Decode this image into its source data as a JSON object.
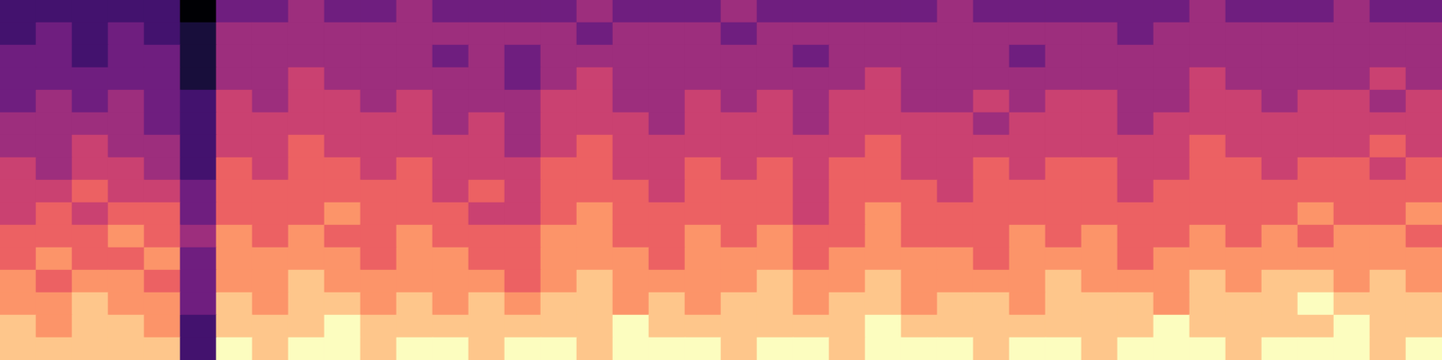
{
  "chart_data": {
    "type": "heatmap",
    "tick_labels": false,
    "zlim": [
      0,
      9
    ],
    "cells": [
      [
        8,
        8,
        8,
        8,
        8,
        2,
        9,
        8,
        9,
        9,
        8,
        9,
        9,
        8,
        9,
        9,
        8,
        9,
        9,
        9,
        8,
        9,
        9,
        8,
        9,
        9,
        9,
        8,
        9,
        9,
        8,
        9,
        9,
        9,
        8,
        9,
        9,
        9,
        8,
        9
      ],
      [
        8,
        7,
        8,
        8,
        7,
        2,
        8,
        8,
        8,
        9,
        8,
        8,
        8,
        8,
        8,
        8,
        8,
        9,
        8,
        8,
        8,
        8,
        8,
        8,
        9,
        8,
        8,
        8,
        8,
        8,
        8,
        8,
        9,
        8,
        8,
        8,
        8,
        9,
        8,
        8
      ],
      [
        7,
        7,
        8,
        7,
        7,
        3,
        8,
        7,
        8,
        8,
        7,
        8,
        7,
        8,
        7,
        8,
        8,
        7,
        8,
        7,
        8,
        8,
        7,
        8,
        8,
        7,
        8,
        8,
        7,
        8,
        8,
        8,
        7,
        8,
        8,
        8,
        9,
        8,
        8,
        8
      ],
      [
        7,
        6,
        7,
        7,
        6,
        3,
        7,
        7,
        8,
        7,
        7,
        7,
        7,
        7,
        6,
        7,
        8,
        7,
        7,
        7,
        7,
        8,
        7,
        7,
        8,
        7,
        7,
        7,
        7,
        8,
        7,
        7,
        7,
        8,
        7,
        8,
        8,
        7,
        8,
        7
      ],
      [
        6,
        7,
        6,
        6,
        7,
        3,
        7,
        7,
        7,
        7,
        6,
        7,
        7,
        6,
        6,
        7,
        7,
        7,
        6,
        7,
        7,
        7,
        6,
        7,
        7,
        7,
        7,
        6,
        7,
        7,
        7,
        6,
        7,
        7,
        7,
        7,
        7,
        7,
        7,
        7
      ],
      [
        6,
        6,
        6,
        7,
        6,
        4,
        7,
        6,
        7,
        6,
        6,
        7,
        6,
        6,
        6,
        7,
        7,
        6,
        6,
        7,
        6,
        7,
        6,
        6,
        7,
        6,
        6,
        6,
        7,
        6,
        7,
        6,
        6,
        7,
        6,
        7,
        6,
        7,
        7,
        6
      ],
      [
        5,
        6,
        5,
        6,
        6,
        3,
        6,
        6,
        6,
        7,
        6,
        6,
        6,
        5,
        5,
        6,
        7,
        6,
        6,
        6,
        6,
        6,
        5,
        6,
        7,
        6,
        6,
        6,
        6,
        6,
        6,
        6,
        6,
        6,
        6,
        6,
        7,
        6,
        6,
        7
      ],
      [
        5,
        5,
        6,
        5,
        5,
        3,
        6,
        6,
        6,
        6,
        6,
        6,
        5,
        6,
        5,
        6,
        6,
        6,
        5,
        6,
        6,
        6,
        5,
        6,
        6,
        6,
        5,
        6,
        6,
        6,
        6,
        5,
        6,
        6,
        6,
        6,
        6,
        6,
        6,
        6
      ],
      [
        5,
        4,
        5,
        5,
        4,
        2,
        6,
        5,
        6,
        6,
        5,
        6,
        5,
        5,
        5,
        6,
        6,
        5,
        5,
        6,
        5,
        6,
        5,
        6,
        6,
        5,
        5,
        6,
        5,
        6,
        6,
        5,
        5,
        6,
        6,
        5,
        6,
        6,
        5,
        6
      ],
      [
        4,
        4,
        5,
        4,
        4,
        2,
        5,
        5,
        6,
        5,
        5,
        5,
        5,
        5,
        4,
        5,
        6,
        5,
        5,
        5,
        5,
        5,
        5,
        5,
        6,
        5,
        5,
        5,
        5,
        5,
        5,
        5,
        5,
        6,
        5,
        5,
        5,
        5,
        6,
        5
      ],
      [
        4,
        4,
        4,
        4,
        3,
        2,
        5,
        5,
        5,
        5,
        5,
        5,
        4,
        5,
        4,
        5,
        5,
        5,
        4,
        5,
        5,
        5,
        4,
        5,
        5,
        5,
        5,
        4,
        5,
        5,
        5,
        4,
        5,
        5,
        5,
        5,
        5,
        5,
        5,
        5
      ],
      [
        3,
        4,
        3,
        4,
        3,
        2,
        5,
        4,
        5,
        5,
        4,
        5,
        4,
        4,
        4,
        5,
        5,
        4,
        4,
        5,
        4,
        5,
        4,
        5,
        5,
        4,
        4,
        5,
        4,
        5,
        5,
        4,
        4,
        5,
        5,
        4,
        5,
        5,
        4,
        5
      ],
      [
        3,
        3,
        3,
        3,
        3,
        1,
        4,
        4,
        5,
        4,
        4,
        4,
        4,
        4,
        3,
        4,
        5,
        4,
        4,
        4,
        4,
        4,
        4,
        4,
        5,
        4,
        4,
        4,
        4,
        4,
        4,
        4,
        4,
        5,
        4,
        4,
        4,
        4,
        5,
        4
      ],
      [
        3,
        3,
        2,
        3,
        3,
        1,
        4,
        4,
        4,
        4,
        4,
        4,
        3,
        4,
        3,
        4,
        4,
        4,
        4,
        4,
        4,
        4,
        3,
        4,
        4,
        4,
        4,
        4,
        3,
        4,
        4,
        4,
        4,
        4,
        4,
        4,
        4,
        4,
        4,
        4
      ],
      [
        2,
        3,
        2,
        3,
        2,
        1,
        4,
        4,
        4,
        4,
        4,
        4,
        4,
        4,
        4,
        4,
        3,
        4,
        4,
        4,
        3,
        4,
        4,
        4,
        4,
        4,
        4,
        4,
        4,
        4,
        4,
        3,
        4,
        4,
        4,
        4,
        4,
        4,
        4,
        4
      ],
      [
        2,
        2,
        2,
        2,
        2,
        0,
        3,
        3,
        4,
        3,
        3,
        4,
        3,
        3,
        3,
        3,
        4,
        3,
        3,
        3,
        4,
        3,
        3,
        3,
        3,
        3,
        4,
        3,
        3,
        3,
        3,
        3,
        3,
        4,
        3,
        3,
        3,
        4,
        3,
        3
      ]
    ]
  }
}
